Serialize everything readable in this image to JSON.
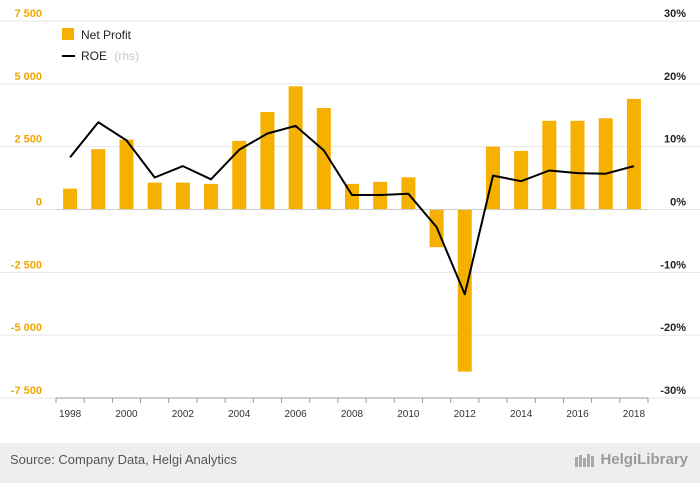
{
  "chart_data": {
    "type": "bar",
    "categories": [
      "1998",
      "1999",
      "2000",
      "2001",
      "2002",
      "2003",
      "2004",
      "2005",
      "2006",
      "2007",
      "2008",
      "2009",
      "2010",
      "2011",
      "2012",
      "2013",
      "2014",
      "2015",
      "2016",
      "2017",
      "2018"
    ],
    "x_tick_labels": [
      "1998",
      "2000",
      "2002",
      "2004",
      "2006",
      "2008",
      "2010",
      "2012",
      "2014",
      "2016",
      "2018"
    ],
    "series": [
      {
        "name": "Net Profit",
        "type": "bar",
        "axis": "left",
        "color": "#f5b000",
        "values": [
          830,
          2400,
          2780,
          1070,
          1070,
          1020,
          2730,
          3880,
          4900,
          4040,
          1020,
          1100,
          1280,
          -1500,
          -6450,
          2500,
          2330,
          3530,
          3530,
          3630,
          4400
        ]
      },
      {
        "name": "ROE",
        "name_suffix": "(rhs)",
        "type": "line",
        "axis": "right",
        "color": "#000000",
        "unit": "%",
        "values": [
          8.3,
          13.9,
          11.0,
          5.1,
          6.9,
          4.8,
          9.5,
          12.1,
          13.3,
          9.4,
          2.3,
          2.3,
          2.5,
          -2.8,
          -13.5,
          5.4,
          4.5,
          6.2,
          5.8,
          5.7,
          6.9
        ]
      }
    ],
    "y_left": {
      "ylim": [
        -7500,
        7500
      ],
      "ticks": [
        -7500,
        -5000,
        -2500,
        0,
        2500,
        5000,
        7500
      ],
      "tick_labels": [
        "-7 500",
        "-5 000",
        "-2 500",
        "0",
        "2 500",
        "5 000",
        "7 500"
      ]
    },
    "y_right": {
      "ylim": [
        -30,
        30
      ],
      "ticks": [
        -30,
        -20,
        -10,
        0,
        10,
        20,
        30
      ],
      "tick_labels": [
        "-30%",
        "-20%",
        "-10%",
        "0%",
        "10%",
        "20%",
        "30%"
      ]
    },
    "grid": true,
    "legend_position": "top-left"
  },
  "footer": {
    "source": "Source: Company Data, Helgi Analytics",
    "brand": "HelgiLibrary"
  }
}
